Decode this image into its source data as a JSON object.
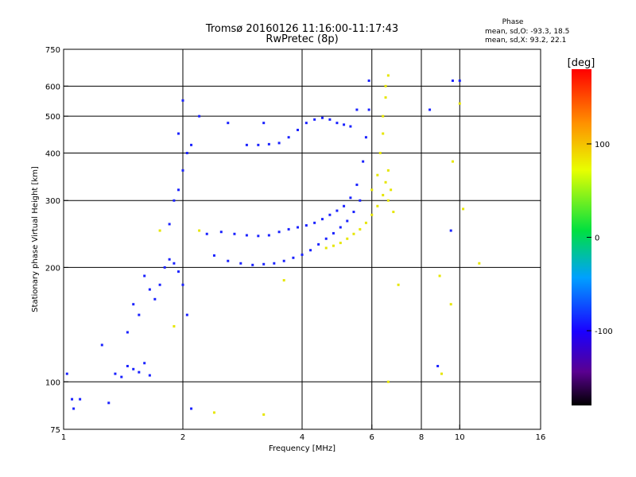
{
  "chart_data": {
    "type": "scatter",
    "title": "Tromsø 20160126 11:16:00-11:17:43",
    "subtitle": "RwPretec (8p)",
    "xlabel": "Frequency [MHz]",
    "ylabel": "Stationary phase Virtual Height [km]",
    "x_scale": "log",
    "y_scale": "log",
    "xlim": [
      1,
      16
    ],
    "ylim": [
      75,
      750
    ],
    "x_ticks": [
      1,
      2,
      4,
      6,
      8,
      10,
      16
    ],
    "y_ticks": [
      75,
      100,
      200,
      300,
      400,
      500,
      600,
      750
    ],
    "x_gridlines": [
      2,
      4,
      6,
      8,
      10
    ],
    "y_gridlines": [
      100,
      200,
      300,
      400,
      500,
      600
    ],
    "grid": true,
    "stats": {
      "header": "Phase",
      "line_o": "mean, sd,O:  -93.3, 18.5",
      "line_x": "mean, sd,X:  93.2, 22.1"
    },
    "colorbar": {
      "label": "[deg]",
      "range": [
        -180,
        180
      ],
      "ticks": [
        100,
        0,
        -100
      ],
      "colormap": "rainbow (black-purple-blue-cyan-green-yellow-red)"
    },
    "series": [
      {
        "mode": "O",
        "phase_mean": -93.3,
        "phase_sd": 18.5,
        "points": [
          [
            1.02,
            105
          ],
          [
            1.05,
            90
          ],
          [
            1.06,
            85
          ],
          [
            1.1,
            90
          ],
          [
            1.25,
            125
          ],
          [
            1.3,
            88
          ],
          [
            1.35,
            105
          ],
          [
            1.4,
            103
          ],
          [
            1.45,
            110
          ],
          [
            1.5,
            108
          ],
          [
            1.55,
            106
          ],
          [
            1.6,
            112
          ],
          [
            1.65,
            104
          ],
          [
            1.45,
            135
          ],
          [
            1.5,
            160
          ],
          [
            1.55,
            150
          ],
          [
            1.6,
            190
          ],
          [
            1.65,
            175
          ],
          [
            1.7,
            165
          ],
          [
            1.75,
            180
          ],
          [
            1.8,
            200
          ],
          [
            1.85,
            210
          ],
          [
            1.9,
            205
          ],
          [
            1.95,
            195
          ],
          [
            2.0,
            180
          ],
          [
            2.05,
            150
          ],
          [
            1.85,
            260
          ],
          [
            1.9,
            300
          ],
          [
            1.95,
            320
          ],
          [
            2.0,
            360
          ],
          [
            2.05,
            400
          ],
          [
            2.1,
            420
          ],
          [
            1.95,
            450
          ],
          [
            2.0,
            550
          ],
          [
            2.3,
            245
          ],
          [
            2.5,
            248
          ],
          [
            2.7,
            245
          ],
          [
            2.9,
            243
          ],
          [
            3.1,
            242
          ],
          [
            3.3,
            243
          ],
          [
            3.5,
            248
          ],
          [
            3.7,
            252
          ],
          [
            3.9,
            255
          ],
          [
            4.1,
            258
          ],
          [
            4.3,
            262
          ],
          [
            4.5,
            268
          ],
          [
            4.7,
            275
          ],
          [
            4.9,
            282
          ],
          [
            5.1,
            290
          ],
          [
            5.3,
            305
          ],
          [
            5.5,
            330
          ],
          [
            5.7,
            380
          ],
          [
            5.8,
            440
          ],
          [
            5.9,
            520
          ],
          [
            5.9,
            620
          ],
          [
            2.4,
            215
          ],
          [
            2.6,
            208
          ],
          [
            2.8,
            205
          ],
          [
            3.0,
            203
          ],
          [
            3.2,
            204
          ],
          [
            3.4,
            205
          ],
          [
            3.6,
            208
          ],
          [
            3.8,
            212
          ],
          [
            4.0,
            216
          ],
          [
            4.2,
            222
          ],
          [
            4.4,
            230
          ],
          [
            4.6,
            238
          ],
          [
            4.8,
            246
          ],
          [
            5.0,
            255
          ],
          [
            5.2,
            265
          ],
          [
            5.4,
            280
          ],
          [
            5.6,
            300
          ],
          [
            2.9,
            420
          ],
          [
            3.1,
            420
          ],
          [
            3.3,
            422
          ],
          [
            3.5,
            425
          ],
          [
            3.7,
            440
          ],
          [
            3.9,
            460
          ],
          [
            4.1,
            480
          ],
          [
            4.3,
            490
          ],
          [
            4.5,
            495
          ],
          [
            4.7,
            490
          ],
          [
            4.9,
            480
          ],
          [
            5.1,
            475
          ],
          [
            5.3,
            470
          ],
          [
            5.5,
            520
          ],
          [
            2.2,
            500
          ],
          [
            2.6,
            480
          ],
          [
            3.2,
            480
          ],
          [
            9.6,
            620
          ],
          [
            10.0,
            620
          ],
          [
            8.4,
            520
          ],
          [
            9.5,
            250
          ],
          [
            8.8,
            110
          ],
          [
            2.1,
            85
          ]
        ]
      },
      {
        "mode": "X",
        "phase_mean": 93.2,
        "phase_sd": 22.1,
        "points": [
          [
            4.6,
            225
          ],
          [
            4.8,
            228
          ],
          [
            5.0,
            232
          ],
          [
            5.2,
            238
          ],
          [
            5.4,
            245
          ],
          [
            5.6,
            252
          ],
          [
            5.8,
            262
          ],
          [
            6.0,
            275
          ],
          [
            6.2,
            290
          ],
          [
            6.4,
            310
          ],
          [
            6.5,
            335
          ],
          [
            6.6,
            360
          ],
          [
            6.3,
            400
          ],
          [
            6.4,
            450
          ],
          [
            6.4,
            500
          ],
          [
            6.5,
            560
          ],
          [
            6.5,
            600
          ],
          [
            6.6,
            640
          ],
          [
            6.2,
            350
          ],
          [
            6.0,
            320
          ],
          [
            6.6,
            300
          ],
          [
            6.8,
            280
          ],
          [
            6.7,
            320
          ],
          [
            1.75,
            250
          ],
          [
            1.9,
            140
          ],
          [
            2.2,
            250
          ],
          [
            2.4,
            83
          ],
          [
            3.2,
            82
          ],
          [
            3.6,
            185
          ],
          [
            7.0,
            180
          ],
          [
            8.9,
            190
          ],
          [
            9.5,
            160
          ],
          [
            9.6,
            380
          ],
          [
            10.0,
            540
          ],
          [
            10.2,
            285
          ],
          [
            11.2,
            205
          ],
          [
            9.0,
            105
          ],
          [
            6.6,
            100
          ]
        ]
      }
    ]
  }
}
